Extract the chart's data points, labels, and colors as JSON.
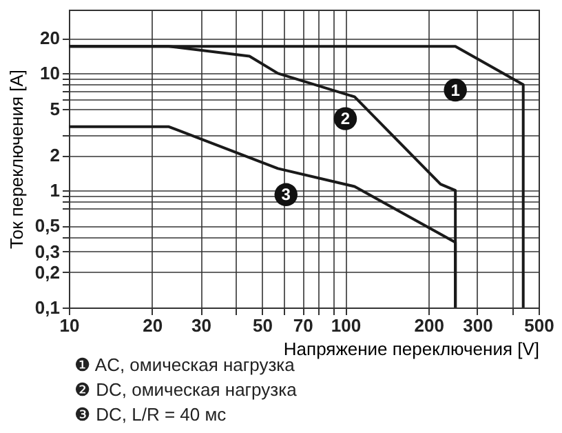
{
  "chart_data": {
    "type": "line",
    "xlabel": "Напряжение переключения [V]",
    "ylabel": "Ток переключения [A]",
    "log": "xy",
    "series": [
      {
        "color": "#1a1a1a",
        "x": [
          10,
          250,
          440,
          440
        ],
        "values": [
          17,
          17,
          8,
          0.1
        ]
      },
      {
        "color": "#1a1a1a",
        "x": [
          10,
          23,
          45,
          57,
          108,
          221,
          250,
          250
        ],
        "values": [
          17,
          17,
          14,
          10,
          6.3,
          1.13,
          1,
          0.1
        ]
      },
      {
        "color": "#1a1a1a",
        "x": [
          10,
          23,
          57,
          108,
          250,
          250
        ],
        "values": [
          3.5,
          3.5,
          1.54,
          1.08,
          0.36,
          0.1
        ]
      }
    ],
    "xlim": [
      10,
      500
    ],
    "ylim": [
      0.1,
      35
    ],
    "xticks": [
      10,
      20,
      30,
      {
        "value": 40,
        "label": null
      },
      50,
      {
        "value": 60,
        "label": null
      },
      70,
      {
        "value": 80,
        "label": null
      },
      {
        "value": 90,
        "label": null
      },
      100,
      200,
      300,
      {
        "value": 400,
        "label": null
      },
      500
    ],
    "yticks": [
      {
        "value": 0.1,
        "label": "0,1"
      },
      {
        "value": 0.2,
        "label": "0,2"
      },
      {
        "value": 0.3,
        "label": "0,3"
      },
      {
        "value": 0.4,
        "label": null
      },
      {
        "value": 0.5,
        "label": "0,5"
      },
      {
        "value": 0.7,
        "label": null
      },
      {
        "value": 0.8,
        "label": null
      },
      {
        "value": 0.9,
        "label": null
      },
      1,
      2,
      {
        "value": 3,
        "label": null
      },
      5,
      {
        "value": 6,
        "label": null
      },
      {
        "value": 7,
        "label": null
      },
      {
        "value": 8,
        "label": null
      },
      {
        "value": 9,
        "label": null
      },
      10,
      20
    ],
    "grid": true,
    "line_style": "solid",
    "marker": "none",
    "annotations": [
      {
        "text": "1",
        "x": 250,
        "y": 7.2
      },
      {
        "text": "2",
        "x": 100,
        "y": 4.1
      },
      {
        "text": "3",
        "x": 61,
        "y": 0.92
      },
      "❶ AC, омическая нагрузка",
      "❷ DC, омическая нагрузка",
      "❸ DC, L/R = 40 мс"
    ]
  }
}
